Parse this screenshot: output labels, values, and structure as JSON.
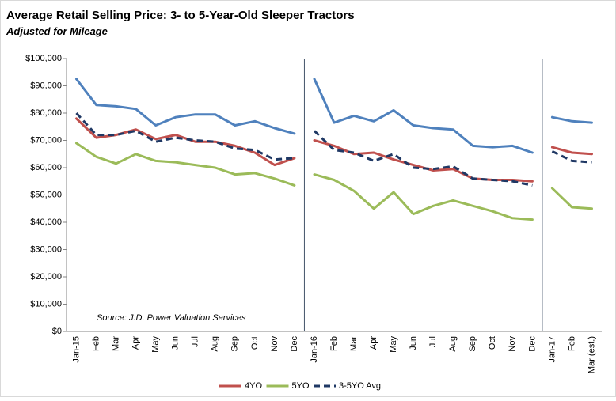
{
  "chart_data": {
    "type": "line",
    "title": "Average Retail Selling Price: 3- to 5-Year-Old Sleeper Tractors",
    "subtitle": "Adjusted for Mileage",
    "annotation": "Source: J.D. Power Valuation Services",
    "categories": [
      "Jan-15",
      "Feb",
      "Mar",
      "Apr",
      "May",
      "Jun",
      "Jul",
      "Aug",
      "Sep",
      "Oct",
      "Nov",
      "Dec",
      "Jan-16",
      "Feb",
      "Mar",
      "Apr",
      "May",
      "Jun",
      "Jul",
      "Aug",
      "Sep",
      "Oct",
      "Nov",
      "Dec",
      "Jan-17",
      "Feb",
      "Mar (est.)"
    ],
    "breaks": [
      12,
      24
    ],
    "ylim": [
      0,
      100000
    ],
    "yticks": [
      {
        "value": 0,
        "label": "$0"
      },
      {
        "value": 10000,
        "label": "$10,000"
      },
      {
        "value": 20000,
        "label": "$20,000"
      },
      {
        "value": 30000,
        "label": "$30,000"
      },
      {
        "value": 40000,
        "label": "$40,000"
      },
      {
        "value": 50000,
        "label": "$50,000"
      },
      {
        "value": 60000,
        "label": "$60,000"
      },
      {
        "value": 70000,
        "label": "$70,000"
      },
      {
        "value": 80000,
        "label": "$80,000"
      },
      {
        "value": 90000,
        "label": "$90,000"
      },
      {
        "value": 100000,
        "label": "$100,000"
      }
    ],
    "legend": "bottom",
    "series": [
      {
        "color": "#4f81bd",
        "dash": false,
        "values": [
          92500,
          83000,
          82500,
          81500,
          75500,
          78500,
          79500,
          79500,
          75500,
          77000,
          74500,
          72500,
          92500,
          76500,
          79000,
          77000,
          81000,
          75500,
          74500,
          74000,
          68000,
          67500,
          68000,
          65500,
          78500,
          77000,
          76500
        ]
      },
      {
        "name": "4YO",
        "color": "#c0504d",
        "dash": false,
        "values": [
          78000,
          71000,
          72000,
          74000,
          70500,
          72000,
          69500,
          69500,
          68000,
          65500,
          61000,
          63500,
          70000,
          68000,
          65000,
          65500,
          63000,
          61000,
          59000,
          59500,
          56000,
          55500,
          55500,
          55000,
          67500,
          65500,
          65000
        ]
      },
      {
        "name": "5YO",
        "color": "#9bbb59",
        "dash": false,
        "values": [
          69000,
          64000,
          61500,
          65000,
          62500,
          62000,
          61000,
          60000,
          57500,
          58000,
          56000,
          53500,
          57500,
          55500,
          51500,
          45000,
          51000,
          43000,
          46000,
          48000,
          46000,
          44000,
          41500,
          41000,
          52500,
          45500,
          45000
        ]
      },
      {
        "name": "3-5YO Avg.",
        "color": "#1f3864",
        "dash": true,
        "values": [
          80000,
          72000,
          72000,
          73500,
          69500,
          71000,
          70000,
          69500,
          67000,
          66500,
          63000,
          63500,
          73500,
          66500,
          65500,
          62500,
          65000,
          60000,
          59500,
          60500,
          56000,
          55500,
          55000,
          53500,
          66000,
          62500,
          62000
        ]
      }
    ]
  }
}
